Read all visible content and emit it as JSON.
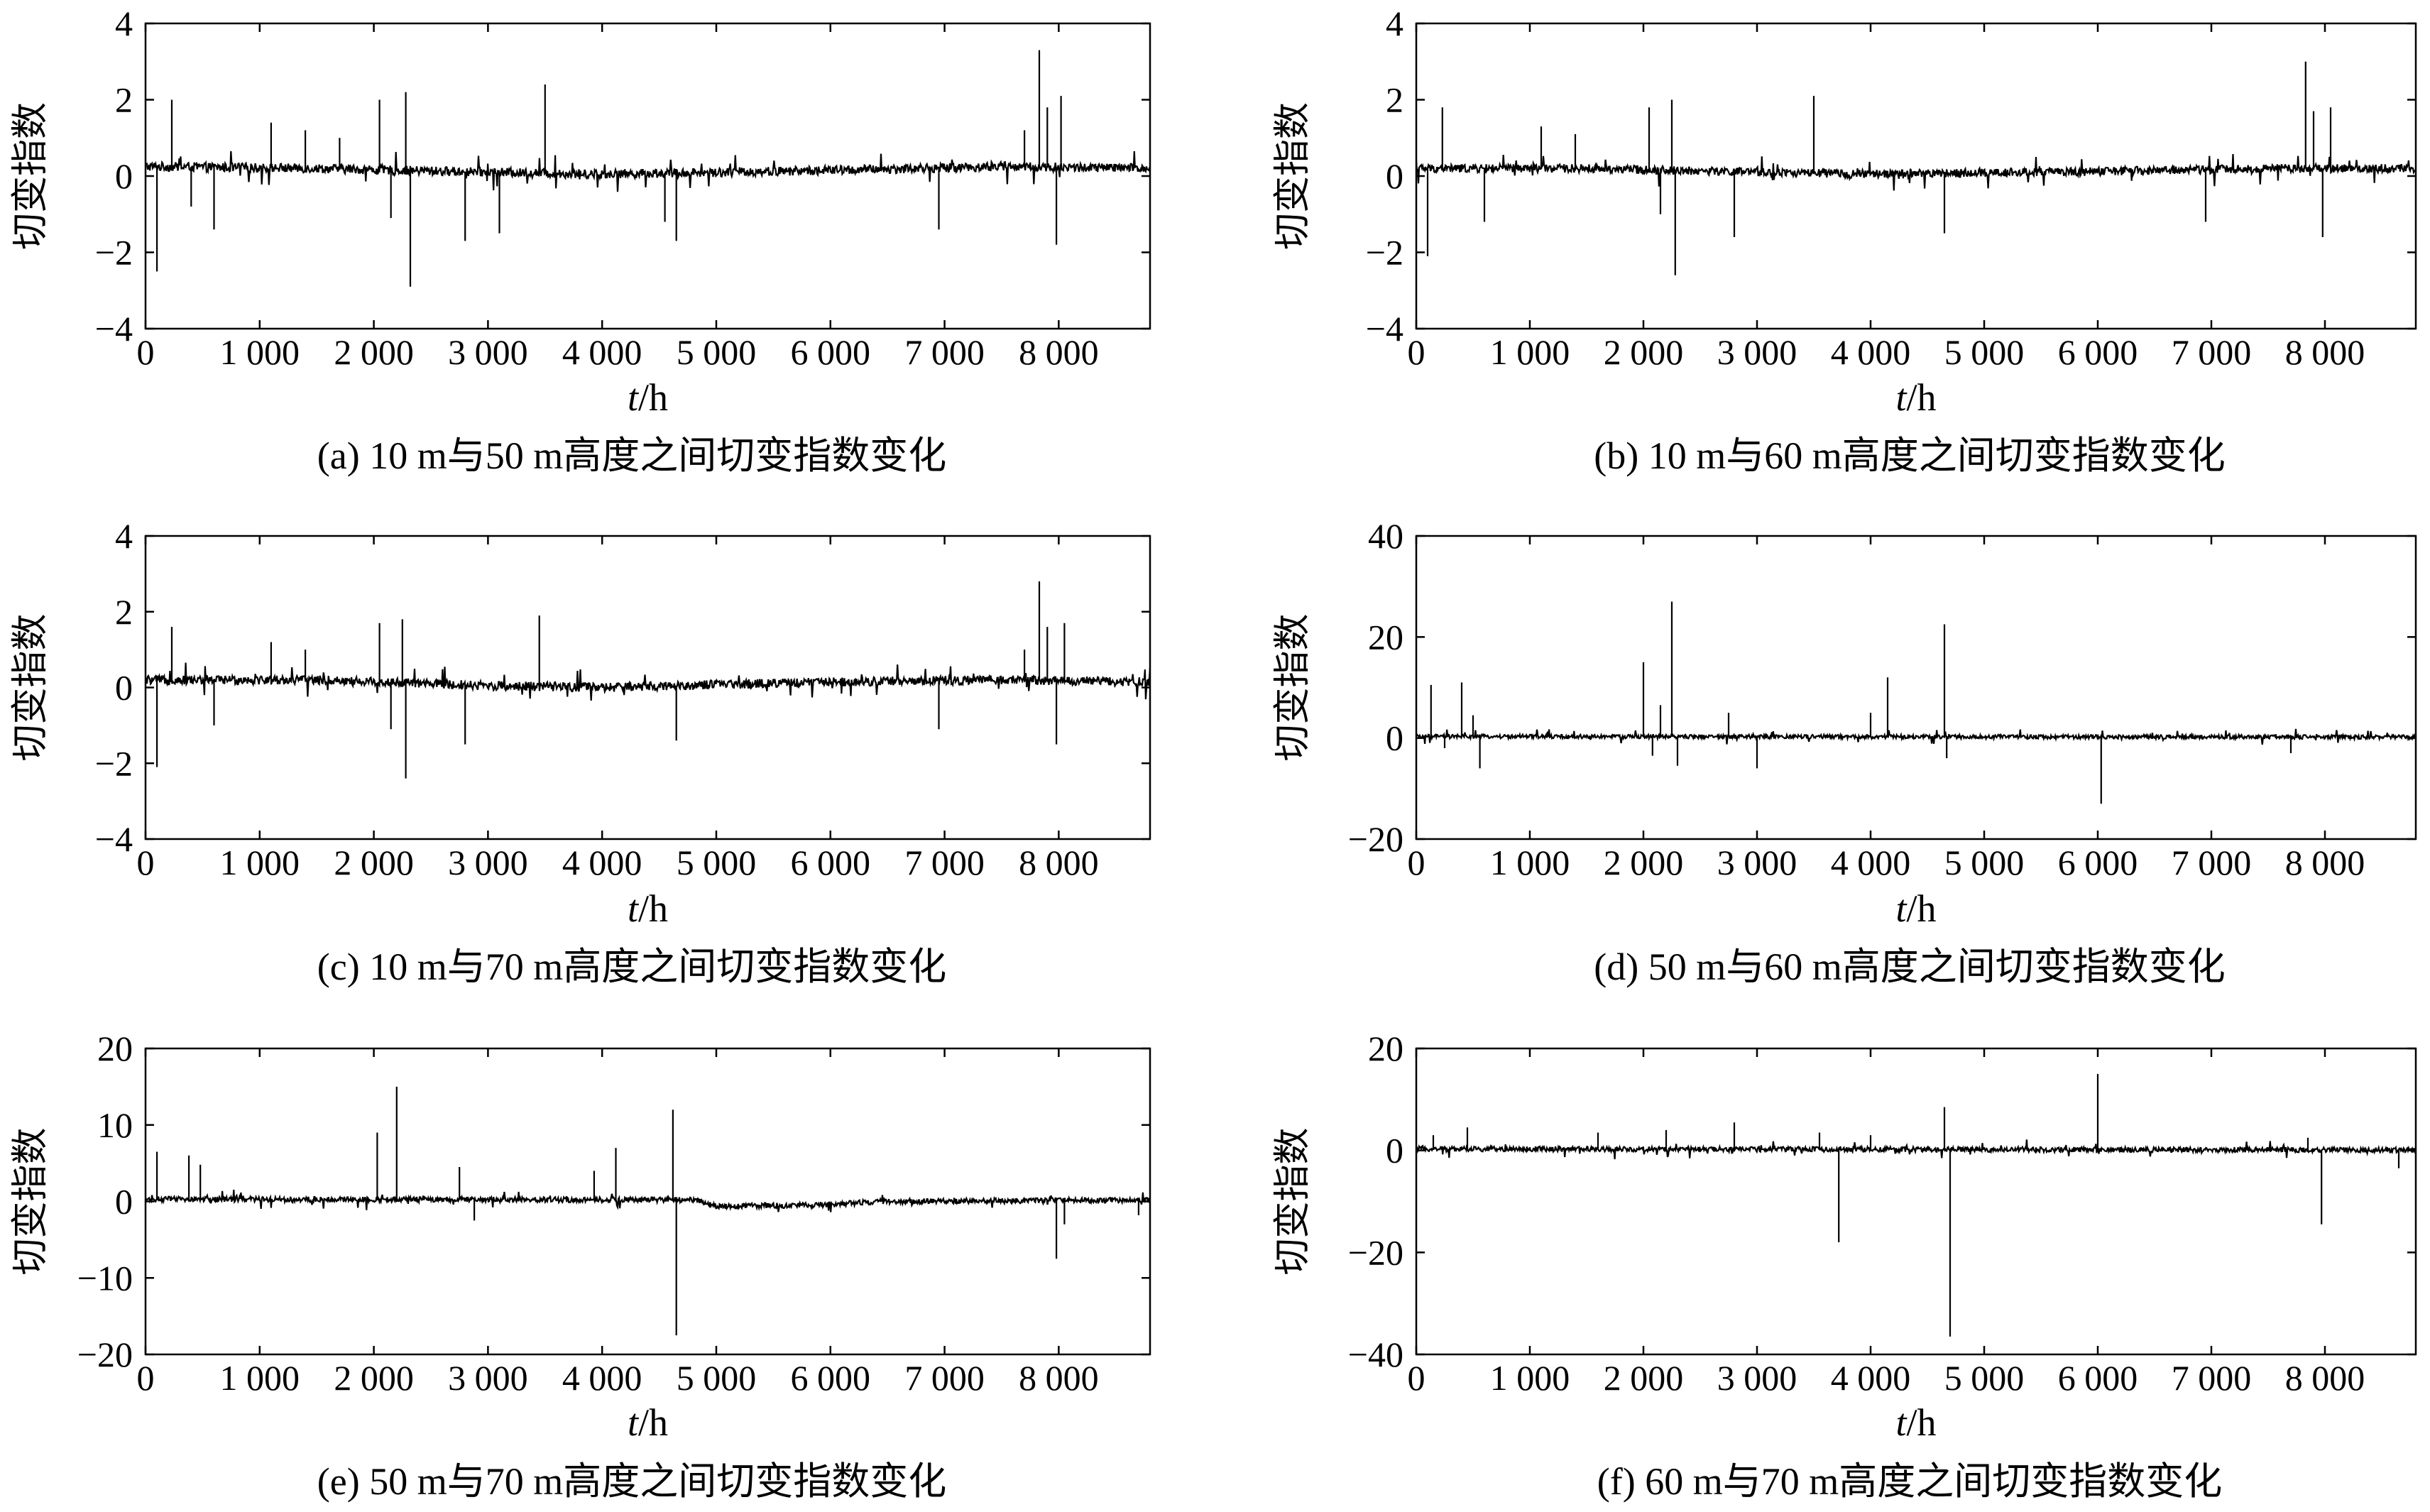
{
  "chart_data": [
    {
      "panel": "a",
      "type": "line",
      "caption": "(a) 10 m与50 m高度之间切变指数变化",
      "xlabel": "t/h",
      "ylabel": "切变指数",
      "xlim": [
        0,
        8800
      ],
      "ylim": [
        -4,
        4
      ],
      "xticks": [
        0,
        1000,
        2000,
        3000,
        4000,
        5000,
        6000,
        7000,
        8000
      ],
      "xtick_labels": [
        "0",
        "1 000",
        "2 000",
        "3 000",
        "4 000",
        "5 000",
        "6 000",
        "7 000",
        "8 000"
      ],
      "yticks": [
        -4,
        -2,
        0,
        2,
        4
      ],
      "ytick_labels": [
        "−4",
        "−2",
        "0",
        "2",
        "4"
      ],
      "grid": false,
      "baseline": [
        [
          0,
          0.25
        ],
        [
          1500,
          0.2
        ],
        [
          3000,
          0.1
        ],
        [
          4000,
          0.05
        ],
        [
          6000,
          0.15
        ],
        [
          7500,
          0.25
        ],
        [
          8800,
          0.2
        ]
      ],
      "noise": 0.12,
      "spikes": [
        [
          100,
          -2.5
        ],
        [
          230,
          2.0
        ],
        [
          400,
          -0.8
        ],
        [
          600,
          -1.4
        ],
        [
          1100,
          1.4
        ],
        [
          1400,
          1.2
        ],
        [
          1700,
          1.0
        ],
        [
          2050,
          2.0
        ],
        [
          2150,
          -1.1
        ],
        [
          2280,
          2.2
        ],
        [
          2320,
          -2.9
        ],
        [
          2800,
          -1.7
        ],
        [
          3100,
          -1.5
        ],
        [
          3500,
          2.4
        ],
        [
          4650,
          -1.7
        ],
        [
          4550,
          -1.2
        ],
        [
          6950,
          -1.4
        ],
        [
          7700,
          1.2
        ],
        [
          7830,
          3.3
        ],
        [
          7900,
          1.8
        ],
        [
          7980,
          -1.8
        ],
        [
          8020,
          2.1
        ]
      ]
    },
    {
      "panel": "b",
      "type": "line",
      "caption": "(b) 10 m与60 m高度之间切变指数变化",
      "xlabel": "t/h",
      "ylabel": "切变指数",
      "xlim": [
        0,
        8800
      ],
      "ylim": [
        -4,
        4
      ],
      "xticks": [
        0,
        1000,
        2000,
        3000,
        4000,
        5000,
        6000,
        7000,
        8000
      ],
      "xtick_labels": [
        "0",
        "1 000",
        "2 000",
        "3 000",
        "4 000",
        "5 000",
        "6 000",
        "7 000",
        "8 000"
      ],
      "yticks": [
        -4,
        -2,
        0,
        2,
        4
      ],
      "ytick_labels": [
        "−4",
        "−2",
        "0",
        "2",
        "4"
      ],
      "grid": false,
      "baseline": [
        [
          0,
          0.2
        ],
        [
          1500,
          0.2
        ],
        [
          3000,
          0.1
        ],
        [
          4000,
          0.05
        ],
        [
          6000,
          0.12
        ],
        [
          7500,
          0.2
        ],
        [
          8800,
          0.2
        ]
      ],
      "noise": 0.11,
      "spikes": [
        [
          100,
          -2.1
        ],
        [
          230,
          1.8
        ],
        [
          600,
          -1.2
        ],
        [
          1100,
          1.3
        ],
        [
          1400,
          1.1
        ],
        [
          2050,
          1.8
        ],
        [
          2150,
          -1.0
        ],
        [
          2250,
          2.0
        ],
        [
          2280,
          -2.6
        ],
        [
          2800,
          -1.6
        ],
        [
          3500,
          2.1
        ],
        [
          4650,
          -1.5
        ],
        [
          6950,
          -1.2
        ],
        [
          7830,
          3.0
        ],
        [
          7900,
          1.7
        ],
        [
          7980,
          -1.6
        ],
        [
          8050,
          1.8
        ]
      ]
    },
    {
      "panel": "c",
      "type": "line",
      "caption": "(c) 10 m与70 m高度之间切变指数变化",
      "xlabel": "t/h",
      "ylabel": "切变指数",
      "xlim": [
        0,
        8800
      ],
      "ylim": [
        -4,
        4
      ],
      "xticks": [
        0,
        1000,
        2000,
        3000,
        4000,
        5000,
        6000,
        7000,
        8000
      ],
      "xtick_labels": [
        "0",
        "1 000",
        "2 000",
        "3 000",
        "4 000",
        "5 000",
        "6 000",
        "7 000",
        "8 000"
      ],
      "yticks": [
        -4,
        -2,
        0,
        2,
        4
      ],
      "ytick_labels": [
        "−4",
        "−2",
        "0",
        "2",
        "4"
      ],
      "grid": false,
      "baseline": [
        [
          0,
          0.2
        ],
        [
          1500,
          0.2
        ],
        [
          3000,
          0.05
        ],
        [
          4000,
          0.0
        ],
        [
          6000,
          0.15
        ],
        [
          7500,
          0.2
        ],
        [
          8800,
          0.15
        ]
      ],
      "noise": 0.12,
      "spikes": [
        [
          100,
          -2.1
        ],
        [
          230,
          1.6
        ],
        [
          600,
          -1.0
        ],
        [
          1100,
          1.2
        ],
        [
          1400,
          1.0
        ],
        [
          2050,
          1.7
        ],
        [
          2150,
          -1.1
        ],
        [
          2250,
          1.8
        ],
        [
          2280,
          -2.4
        ],
        [
          2800,
          -1.5
        ],
        [
          3450,
          1.9
        ],
        [
          4650,
          -1.4
        ],
        [
          6950,
          -1.1
        ],
        [
          7700,
          1.0
        ],
        [
          7830,
          2.8
        ],
        [
          7900,
          1.6
        ],
        [
          7980,
          -1.5
        ],
        [
          8050,
          1.7
        ]
      ]
    },
    {
      "panel": "d",
      "type": "line",
      "caption": "(d) 50 m与60 m高度之间切变指数变化",
      "xlabel": "t/h",
      "ylabel": "切变指数",
      "xlim": [
        0,
        8800
      ],
      "ylim": [
        -20,
        40
      ],
      "xticks": [
        0,
        1000,
        2000,
        3000,
        4000,
        5000,
        6000,
        7000,
        8000
      ],
      "xtick_labels": [
        "0",
        "1 000",
        "2 000",
        "3 000",
        "4 000",
        "5 000",
        "6 000",
        "7 000",
        "8 000"
      ],
      "yticks": [
        -20,
        0,
        20,
        40
      ],
      "ytick_labels": [
        "−20",
        "0",
        "20",
        "40"
      ],
      "grid": false,
      "baseline": [
        [
          0,
          0.3
        ],
        [
          8800,
          0.2
        ]
      ],
      "noise": 0.4,
      "spikes": [
        [
          130,
          10.5
        ],
        [
          250,
          -2.0
        ],
        [
          400,
          11.0
        ],
        [
          500,
          4.5
        ],
        [
          560,
          -6.0
        ],
        [
          2000,
          15.0
        ],
        [
          2080,
          -3.5
        ],
        [
          2150,
          6.5
        ],
        [
          2250,
          27.0
        ],
        [
          2300,
          -5.5
        ],
        [
          2750,
          5.0
        ],
        [
          3000,
          -6.0
        ],
        [
          4000,
          5.0
        ],
        [
          4150,
          12.0
        ],
        [
          4650,
          22.5
        ],
        [
          4670,
          -4.0
        ],
        [
          6030,
          -13.0
        ],
        [
          7700,
          -3.0
        ]
      ]
    },
    {
      "panel": "e",
      "type": "line",
      "caption": "(e) 50 m与70 m高度之间切变指数变化",
      "xlabel": "t/h",
      "ylabel": "切变指数",
      "xlim": [
        0,
        8800
      ],
      "ylim": [
        -20,
        20
      ],
      "xticks": [
        0,
        1000,
        2000,
        3000,
        4000,
        5000,
        6000,
        7000,
        8000
      ],
      "xtick_labels": [
        "0",
        "1 000",
        "2 000",
        "3 000",
        "4 000",
        "5 000",
        "6 000",
        "7 000",
        "8 000"
      ],
      "yticks": [
        -20,
        -10,
        0,
        10,
        20
      ],
      "ytick_labels": [
        "−20",
        "−10",
        "0",
        "10",
        "20"
      ],
      "grid": false,
      "baseline": [
        [
          0,
          0.3
        ],
        [
          4800,
          0.2
        ],
        [
          5000,
          -0.6
        ],
        [
          5800,
          -0.5
        ],
        [
          6500,
          0.0
        ],
        [
          8800,
          0.2
        ]
      ],
      "noise": 0.35,
      "spikes": [
        [
          100,
          6.5
        ],
        [
          380,
          6.0
        ],
        [
          480,
          4.8
        ],
        [
          2030,
          9.0
        ],
        [
          2200,
          15.0
        ],
        [
          2750,
          4.5
        ],
        [
          2880,
          -2.5
        ],
        [
          3930,
          4.0
        ],
        [
          4120,
          7.0
        ],
        [
          4620,
          12.0
        ],
        [
          4650,
          -17.5
        ],
        [
          7980,
          -7.5
        ],
        [
          8050,
          -3.0
        ],
        [
          8700,
          -1.8
        ]
      ]
    },
    {
      "panel": "f",
      "type": "line",
      "caption": "(f) 60 m与70 m高度之间切变指数变化",
      "xlabel": "t/h",
      "ylabel": "切变指数",
      "xlim": [
        0,
        8800
      ],
      "ylim": [
        -40,
        20
      ],
      "xticks": [
        0,
        1000,
        2000,
        3000,
        4000,
        5000,
        6000,
        7000,
        8000
      ],
      "xtick_labels": [
        "0",
        "1 000",
        "2 000",
        "3 000",
        "4 000",
        "5 000",
        "6 000",
        "7 000",
        "8 000"
      ],
      "yticks": [
        -40,
        -20,
        0,
        20
      ],
      "ytick_labels": [
        "−40",
        "−20",
        "0",
        "20"
      ],
      "grid": false,
      "baseline": [
        [
          0,
          0.3
        ],
        [
          8800,
          0.1
        ]
      ],
      "noise": 0.5,
      "spikes": [
        [
          150,
          3.0
        ],
        [
          450,
          4.5
        ],
        [
          1600,
          3.5
        ],
        [
          2200,
          4.0
        ],
        [
          2800,
          5.5
        ],
        [
          3550,
          3.5
        ],
        [
          3720,
          -18.0
        ],
        [
          4000,
          3.0
        ],
        [
          4650,
          8.5
        ],
        [
          4700,
          -36.5
        ],
        [
          6000,
          15.0
        ],
        [
          7850,
          2.5
        ],
        [
          7970,
          -14.5
        ],
        [
          8650,
          -3.5
        ]
      ]
    }
  ]
}
